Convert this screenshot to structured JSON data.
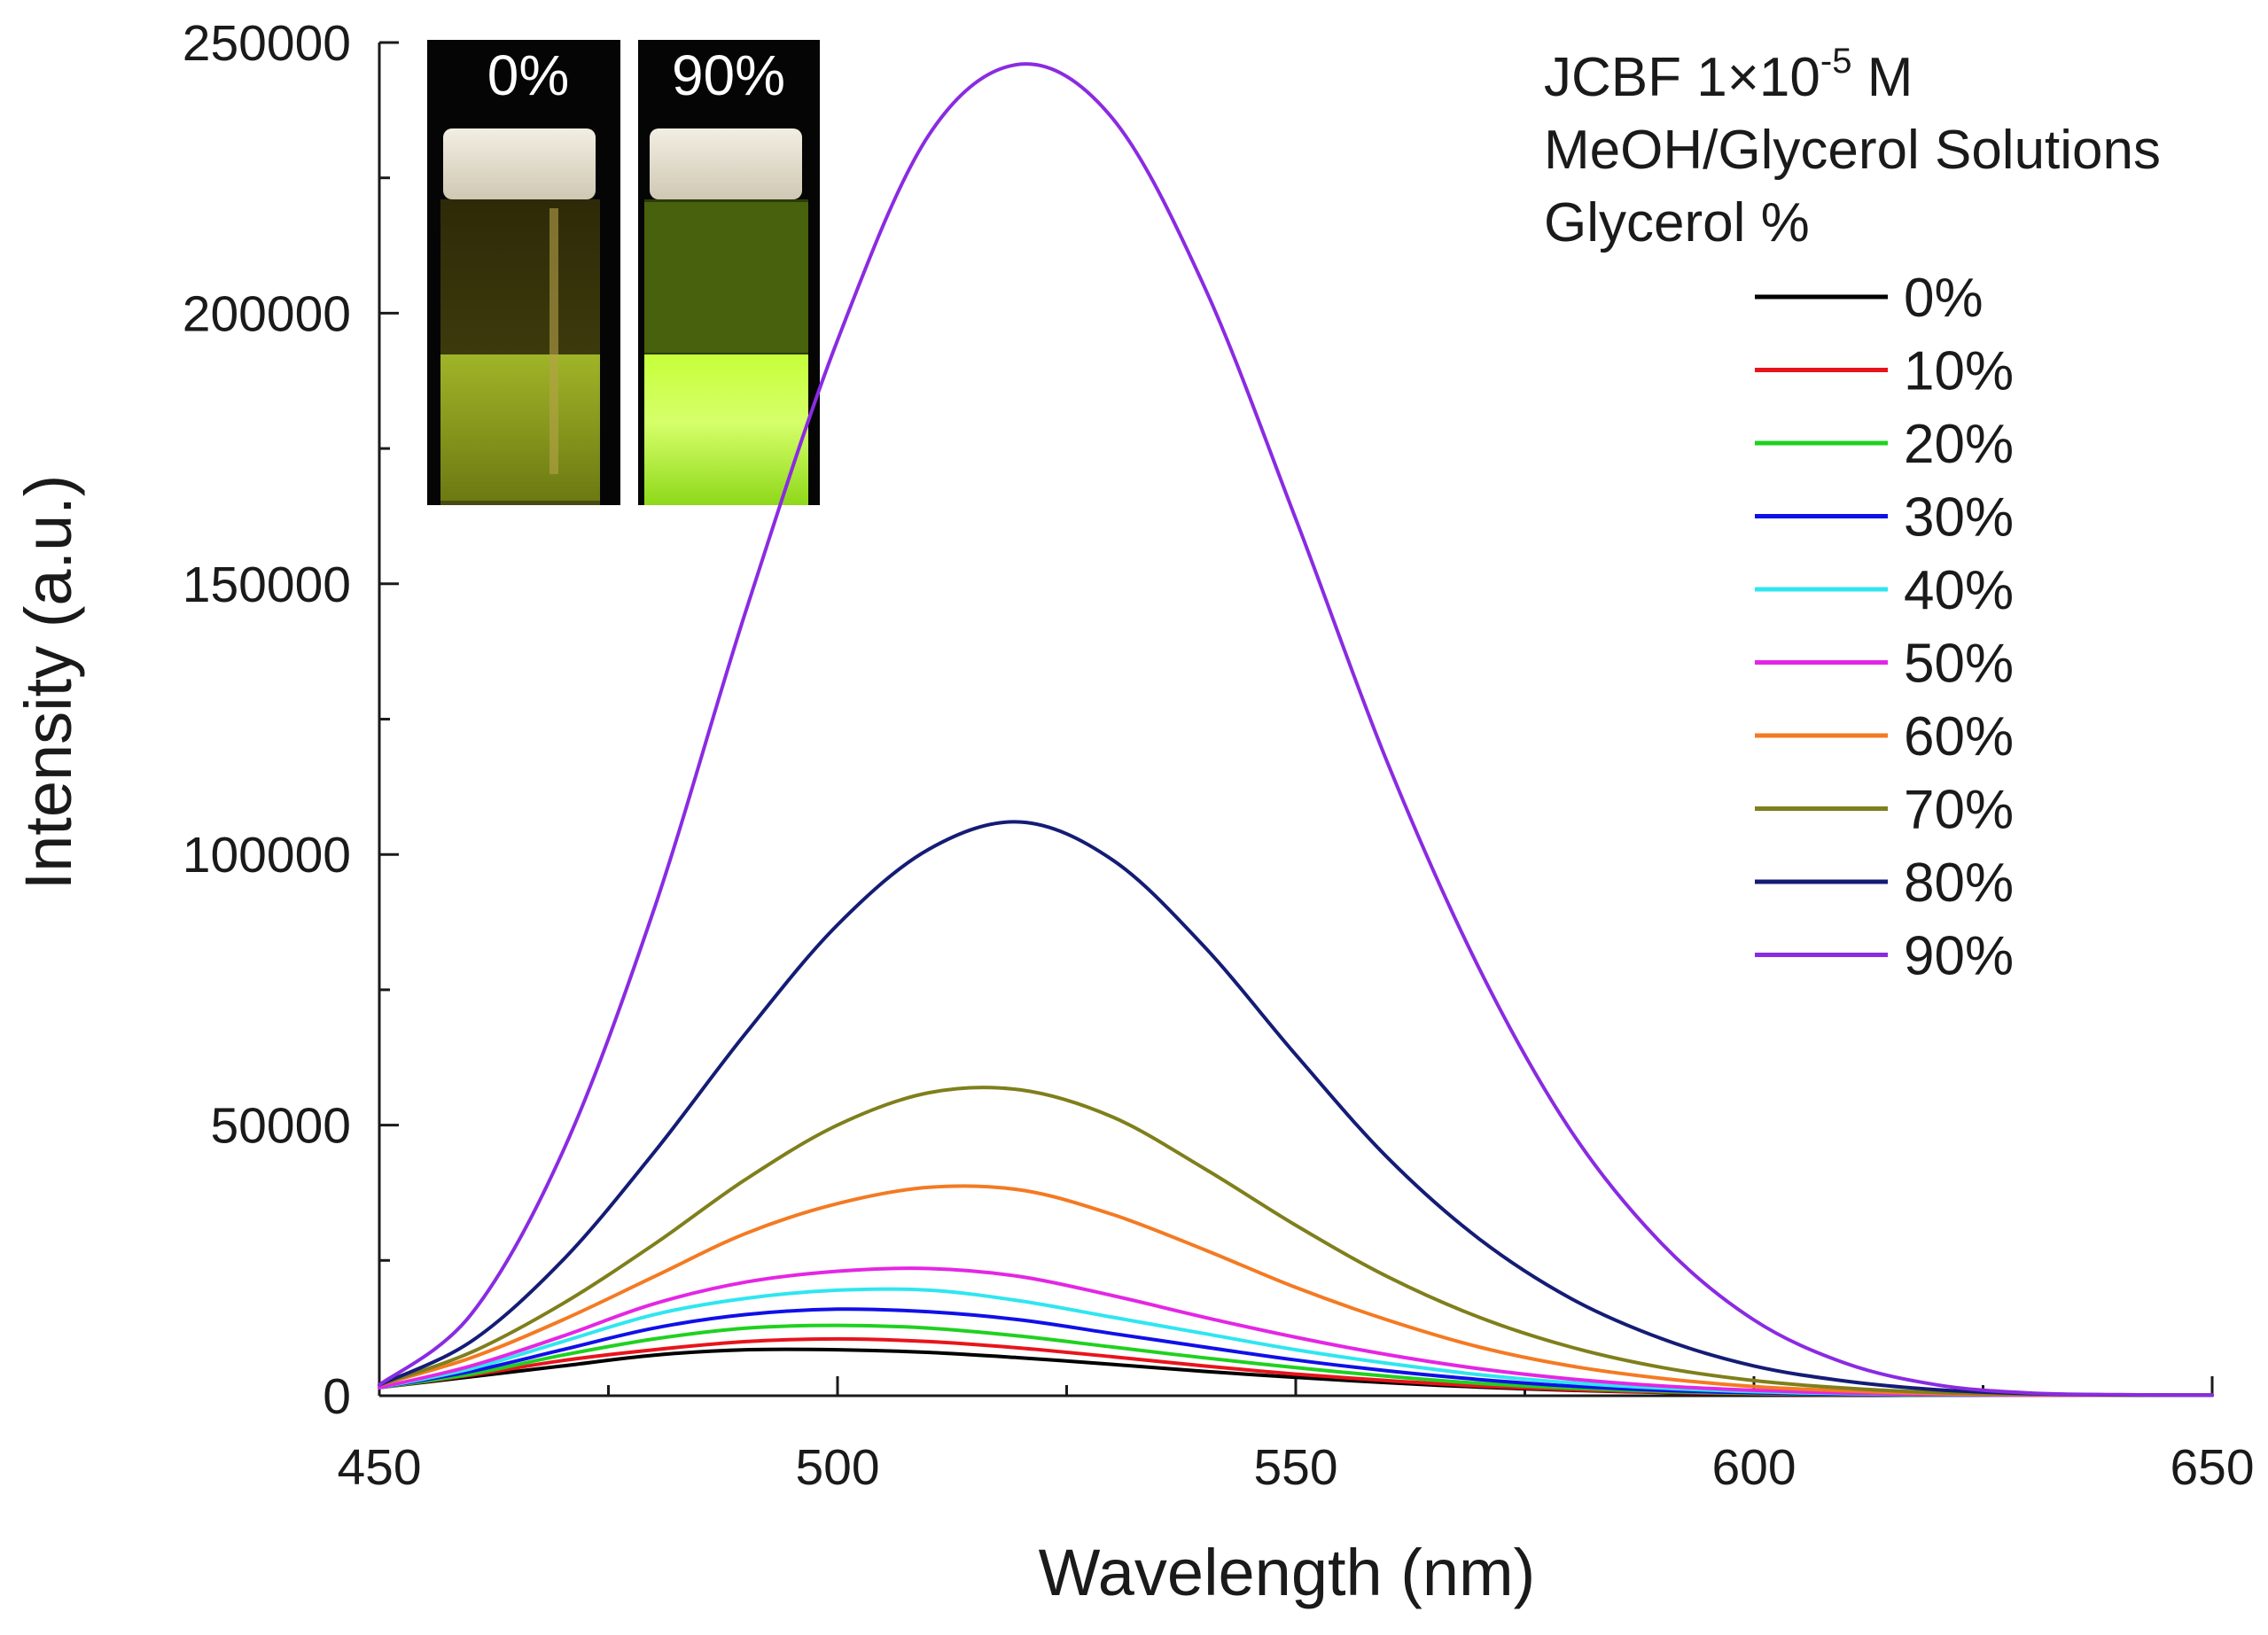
{
  "chart_data": {
    "type": "line",
    "xlabel": "Wavelength (nm)",
    "ylabel": "Intensity (a.u.)",
    "xlim": [
      450,
      650
    ],
    "ylim": [
      0,
      250000
    ],
    "x_ticks": [
      "450",
      "500",
      "550",
      "600",
      "650"
    ],
    "y_ticks": [
      "0",
      "50000",
      "100000",
      "150000",
      "200000",
      "250000"
    ],
    "x": [
      450,
      460,
      470,
      480,
      490,
      500,
      510,
      520,
      530,
      540,
      550,
      560,
      570,
      580,
      590,
      600,
      610,
      620,
      630,
      640,
      650
    ],
    "legend_title": {
      "compound": "JCBF 1×10",
      "exponent": "-5",
      "unit": " M",
      "line2": "MeOH/Glycerol Solutions",
      "line3": "Glycerol %"
    },
    "series": [
      {
        "name": "0%",
        "color": "#000000",
        "values": [
          1500,
          3500,
          5500,
          7500,
          8500,
          8500,
          8000,
          7000,
          5800,
          4500,
          3400,
          2400,
          1600,
          1000,
          600,
          300,
          150,
          100,
          100,
          100,
          100
        ]
      },
      {
        "name": "10%",
        "color": "#e8141c",
        "values": [
          1500,
          3800,
          6500,
          8500,
          10000,
          10500,
          10000,
          8800,
          7200,
          5500,
          4000,
          2800,
          1800,
          1100,
          650,
          350,
          200,
          100,
          100,
          100,
          100
        ]
      },
      {
        "name": "20%",
        "color": "#1fd11f",
        "values": [
          1500,
          4000,
          7500,
          10500,
          12500,
          13000,
          12500,
          11000,
          9000,
          7000,
          5200,
          3600,
          2300,
          1400,
          800,
          450,
          250,
          100,
          100,
          100,
          100
        ]
      },
      {
        "name": "30%",
        "color": "#1010e8",
        "values": [
          1500,
          4500,
          8500,
          12500,
          15000,
          16000,
          15500,
          14000,
          11500,
          9000,
          6600,
          4600,
          3000,
          1800,
          1000,
          550,
          300,
          150,
          100,
          100,
          100
        ]
      },
      {
        "name": "40%",
        "color": "#2fe6f0",
        "values": [
          1500,
          5000,
          10000,
          15000,
          18000,
          19500,
          19500,
          17500,
          14500,
          11500,
          8500,
          6000,
          3900,
          2400,
          1400,
          750,
          400,
          200,
          100,
          100,
          100
        ]
      },
      {
        "name": "50%",
        "color": "#e426e4",
        "values": [
          1500,
          5500,
          11000,
          17000,
          21000,
          23000,
          23500,
          22000,
          18500,
          14500,
          10800,
          7600,
          5000,
          3100,
          1800,
          1000,
          500,
          250,
          100,
          100,
          100
        ]
      },
      {
        "name": "60%",
        "color": "#f47a22",
        "values": [
          2000,
          7000,
          14000,
          22000,
          30000,
          35500,
          38500,
          38000,
          33500,
          27000,
          20000,
          14000,
          9000,
          5500,
          3200,
          1700,
          900,
          400,
          200,
          100,
          100
        ]
      },
      {
        "name": "70%",
        "color": "#7f7f1c",
        "values": [
          2000,
          8000,
          17000,
          28000,
          40000,
          50000,
          56000,
          56500,
          51500,
          42000,
          31500,
          22000,
          14500,
          9000,
          5200,
          2800,
          1400,
          600,
          300,
          100,
          100
        ]
      },
      {
        "name": "80%",
        "color": "#141c75",
        "values": [
          2000,
          10000,
          25000,
          45000,
          67000,
          87000,
          101000,
          106000,
          99000,
          83000,
          63000,
          44000,
          29000,
          18000,
          10500,
          5500,
          2700,
          1100,
          400,
          150,
          100
        ]
      },
      {
        "name": "90%",
        "color": "#8a2be2",
        "values": [
          2000,
          15000,
          45000,
          90000,
          145000,
          195000,
          233000,
          246000,
          236000,
          205000,
          162000,
          117000,
          79000,
          49000,
          28000,
          14000,
          6000,
          2000,
          500,
          200,
          100
        ]
      }
    ]
  },
  "inset": {
    "left_label": "0%",
    "right_label": "90%"
  }
}
